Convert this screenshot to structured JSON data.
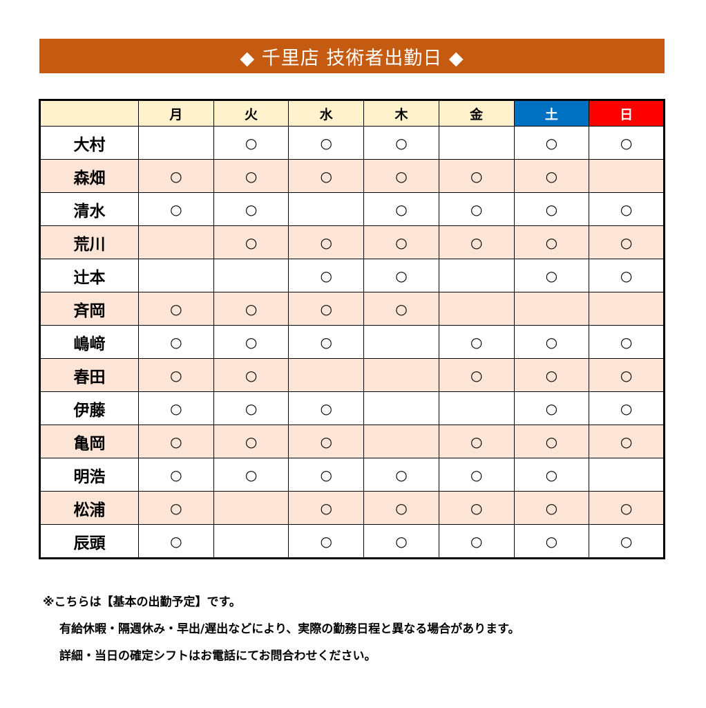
{
  "title": "◆ 千里店 技術者出勤日 ◆",
  "colors": {
    "banner": "#c55a11",
    "header": "#fff2cc",
    "saturday": "#0070c0",
    "sunday": "#ff0000",
    "alt_row": "#fce4d6"
  },
  "mark": "○",
  "days": [
    "月",
    "火",
    "水",
    "木",
    "金",
    "土",
    "日"
  ],
  "rows": [
    {
      "name": "大村",
      "cells": [
        "",
        "○",
        "○",
        "○",
        "",
        "○",
        "○"
      ]
    },
    {
      "name": "森畑",
      "cells": [
        "○",
        "○",
        "○",
        "○",
        "○",
        "○",
        ""
      ]
    },
    {
      "name": "清水",
      "cells": [
        "○",
        "○",
        "",
        "○",
        "○",
        "○",
        "○"
      ]
    },
    {
      "name": "荒川",
      "cells": [
        "",
        "○",
        "○",
        "○",
        "○",
        "○",
        "○"
      ]
    },
    {
      "name": "辻本",
      "cells": [
        "",
        "",
        "○",
        "○",
        "",
        "○",
        "○"
      ]
    },
    {
      "name": "斉岡",
      "cells": [
        "○",
        "○",
        "○",
        "○",
        "",
        "",
        ""
      ]
    },
    {
      "name": "嶋﨑",
      "cells": [
        "○",
        "○",
        "○",
        "",
        "○",
        "○",
        "○"
      ]
    },
    {
      "name": "春田",
      "cells": [
        "○",
        "○",
        "",
        "",
        "○",
        "○",
        "○"
      ]
    },
    {
      "name": "伊藤",
      "cells": [
        "○",
        "○",
        "○",
        "",
        "",
        "○",
        "○"
      ]
    },
    {
      "name": "亀岡",
      "cells": [
        "○",
        "○",
        "○",
        "",
        "○",
        "○",
        "○"
      ]
    },
    {
      "name": "明浩",
      "cells": [
        "○",
        "○",
        "○",
        "○",
        "○",
        "○",
        ""
      ]
    },
    {
      "name": "松浦",
      "cells": [
        "○",
        "",
        "○",
        "○",
        "○",
        "○",
        "○"
      ]
    },
    {
      "name": "辰頭",
      "cells": [
        "○",
        "",
        "○",
        "○",
        "○",
        "○",
        "○"
      ]
    }
  ],
  "notes": [
    "※こちらは【基本の出勤予定】です。",
    "有給休暇・隔週休み・早出/遅出などにより、実際の勤務日程と異なる場合があります。",
    "詳細・当日の確定シフトはお電話にてお問合わせください。"
  ]
}
